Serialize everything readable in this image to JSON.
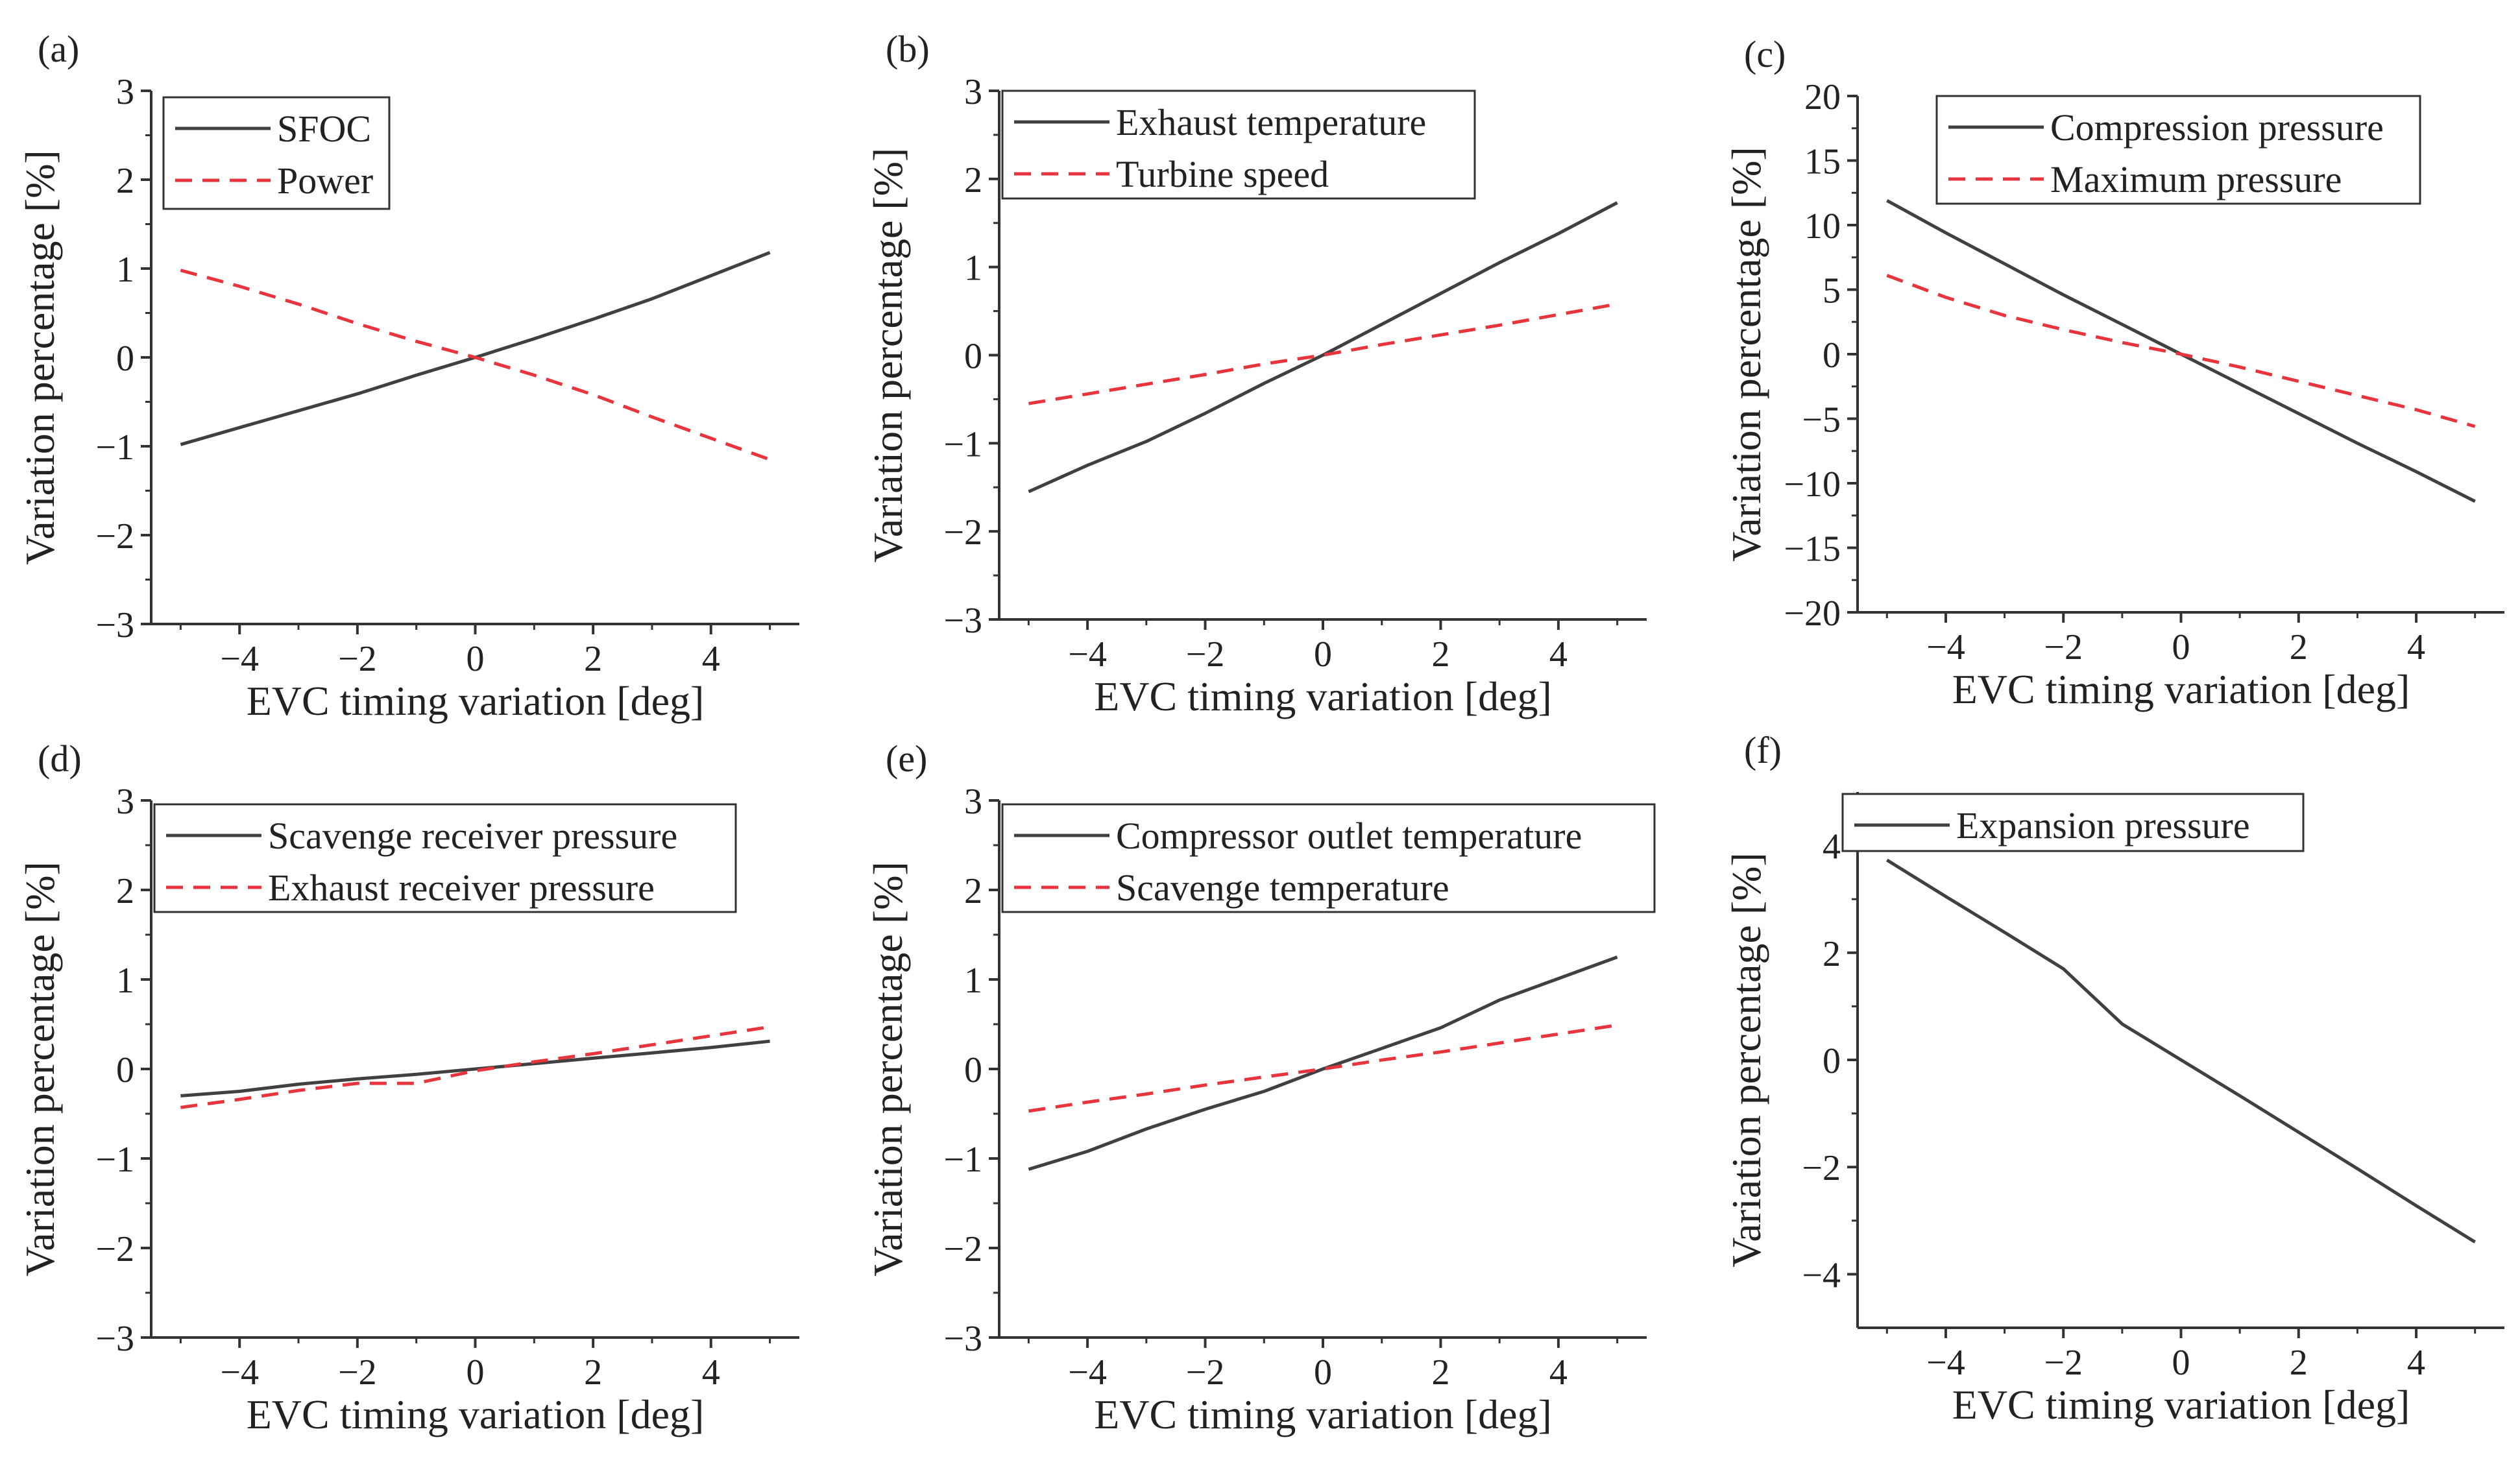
{
  "figure": {
    "colors": {
      "solid": "#404040",
      "dashed": "#e8343c",
      "axis": "#333333",
      "text": "#222222"
    }
  },
  "chart_data": [
    {
      "panel_label": "(a)",
      "type": "line",
      "xlabel": "EVC timing variation [deg]",
      "ylabel": "Variation percentage [%]",
      "xlim": [
        -5.5,
        5.5
      ],
      "ylim": [
        -3,
        3
      ],
      "xticks": [
        -4,
        -2,
        0,
        2,
        4
      ],
      "xtick_labels": [
        "−4",
        "−2",
        "0",
        "2",
        "4"
      ],
      "yticks": [
        -3,
        -2,
        -1,
        0,
        1,
        2,
        3
      ],
      "ytick_labels": [
        "−3",
        "−2",
        "−1",
        "0",
        "1",
        "2",
        "3"
      ],
      "legend_position": "top-left",
      "x": [
        -5,
        -4,
        -3,
        -2,
        -1,
        0,
        1,
        2,
        3,
        4,
        5
      ],
      "series": [
        {
          "name": "SFOC",
          "style": "solid",
          "values": [
            -0.98,
            -0.79,
            -0.6,
            -0.41,
            -0.2,
            0.0,
            0.21,
            0.43,
            0.66,
            0.92,
            1.18
          ]
        },
        {
          "name": "Power",
          "style": "dashed",
          "values": [
            0.98,
            0.8,
            0.6,
            0.38,
            0.18,
            0.0,
            -0.2,
            -0.42,
            -0.67,
            -0.91,
            -1.15
          ]
        }
      ]
    },
    {
      "panel_label": "(b)",
      "type": "line",
      "xlabel": "EVC timing variation [deg]",
      "ylabel": "Variation percentage [%]",
      "xlim": [
        -5.5,
        5.5
      ],
      "ylim": [
        -3,
        3
      ],
      "xticks": [
        -4,
        -2,
        0,
        2,
        4
      ],
      "xtick_labels": [
        "−4",
        "−2",
        "0",
        "2",
        "4"
      ],
      "yticks": [
        -3,
        -2,
        -1,
        0,
        1,
        2,
        3
      ],
      "ytick_labels": [
        "−3",
        "−2",
        "−1",
        "0",
        "1",
        "2",
        "3"
      ],
      "legend_position": "top-left",
      "x": [
        -5,
        -4,
        -3,
        -2,
        -1,
        0,
        1,
        2,
        3,
        4,
        5
      ],
      "series": [
        {
          "name": "Exhaust temperature",
          "style": "solid",
          "values": [
            -1.55,
            -1.25,
            -0.98,
            -0.66,
            -0.32,
            0.0,
            0.35,
            0.7,
            1.05,
            1.38,
            1.73
          ]
        },
        {
          "name": "Turbine speed",
          "style": "dashed",
          "values": [
            -0.55,
            -0.44,
            -0.33,
            -0.22,
            -0.1,
            0.0,
            0.12,
            0.23,
            0.34,
            0.46,
            0.58
          ]
        }
      ]
    },
    {
      "panel_label": "(c)",
      "type": "line",
      "xlabel": "EVC timing variation [deg]",
      "ylabel": "Variation percentage [%]",
      "xlim": [
        -5.5,
        5.5
      ],
      "ylim": [
        -20,
        20
      ],
      "xticks": [
        -4,
        -2,
        0,
        2,
        4
      ],
      "xtick_labels": [
        "−4",
        "−2",
        "0",
        "2",
        "4"
      ],
      "yticks": [
        -20,
        -15,
        -10,
        -5,
        0,
        5,
        10,
        15,
        20
      ],
      "ytick_labels": [
        "−20",
        "−15",
        "−10",
        "−5",
        "0",
        "5",
        "10",
        "15",
        "20"
      ],
      "legend_position": "top-right",
      "x": [
        -5,
        -4,
        -3,
        -2,
        -1,
        0,
        1,
        2,
        3,
        4,
        5
      ],
      "series": [
        {
          "name": "Compression pressure",
          "style": "solid",
          "values": [
            11.9,
            9.4,
            7.0,
            4.6,
            2.3,
            0.0,
            -2.3,
            -4.6,
            -6.9,
            -9.1,
            -11.4
          ]
        },
        {
          "name": "Maximum pressure",
          "style": "dashed",
          "values": [
            6.1,
            4.4,
            3.0,
            1.9,
            0.9,
            0.0,
            -1.0,
            -2.1,
            -3.2,
            -4.3,
            -5.6
          ]
        }
      ]
    },
    {
      "panel_label": "(d)",
      "type": "line",
      "xlabel": "EVC timing variation [deg]",
      "ylabel": "Variation percentage [%]",
      "xlim": [
        -5.5,
        5.5
      ],
      "ylim": [
        -3,
        3
      ],
      "xticks": [
        -4,
        -2,
        0,
        2,
        4
      ],
      "xtick_labels": [
        "−4",
        "−2",
        "0",
        "2",
        "4"
      ],
      "yticks": [
        -3,
        -2,
        -1,
        0,
        1,
        2,
        3
      ],
      "ytick_labels": [
        "−3",
        "−2",
        "−1",
        "0",
        "1",
        "2",
        "3"
      ],
      "legend_position": "top-left",
      "x": [
        -5,
        -4,
        -3,
        -2,
        -1,
        0,
        1,
        2,
        3,
        4,
        5
      ],
      "series": [
        {
          "name": "Scavenge receiver pressure",
          "style": "solid",
          "values": [
            -0.3,
            -0.25,
            -0.17,
            -0.11,
            -0.06,
            0.0,
            0.06,
            0.12,
            0.18,
            0.24,
            0.31
          ]
        },
        {
          "name": "Exhaust receiver pressure",
          "style": "dashed",
          "values": [
            -0.43,
            -0.34,
            -0.24,
            -0.16,
            -0.16,
            -0.02,
            0.08,
            0.17,
            0.27,
            0.37,
            0.47
          ]
        }
      ]
    },
    {
      "panel_label": "(e)",
      "type": "line",
      "xlabel": "EVC timing variation [deg]",
      "ylabel": "Variation percentage [%]",
      "xlim": [
        -5.5,
        5.5
      ],
      "ylim": [
        -3,
        3
      ],
      "xticks": [
        -4,
        -2,
        0,
        2,
        4
      ],
      "xtick_labels": [
        "−4",
        "−2",
        "0",
        "2",
        "4"
      ],
      "yticks": [
        -3,
        -2,
        -1,
        0,
        1,
        2,
        3
      ],
      "ytick_labels": [
        "−3",
        "−2",
        "−1",
        "0",
        "1",
        "2",
        "3"
      ],
      "legend_position": "top-left",
      "x": [
        -5,
        -4,
        -3,
        -2,
        -1,
        0,
        1,
        2,
        3,
        4,
        5
      ],
      "series": [
        {
          "name": "Compressor outlet temperature",
          "style": "solid",
          "values": [
            -1.12,
            -0.92,
            -0.67,
            -0.45,
            -0.25,
            0.0,
            0.23,
            0.46,
            0.77,
            1.01,
            1.25
          ]
        },
        {
          "name": "Scavenge temperature",
          "style": "dashed",
          "values": [
            -0.47,
            -0.37,
            -0.28,
            -0.18,
            -0.09,
            0.0,
            0.1,
            0.19,
            0.29,
            0.39,
            0.49
          ]
        }
      ]
    },
    {
      "panel_label": "(f)",
      "type": "line",
      "xlabel": "EVC timing variation [deg]",
      "ylabel": "Variation percentage [%]",
      "xlim": [
        -5.5,
        5.5
      ],
      "ylim": [
        -5,
        5
      ],
      "xticks": [
        -4,
        -2,
        0,
        2,
        4
      ],
      "xtick_labels": [
        "−4",
        "−2",
        "0",
        "2",
        "4"
      ],
      "yticks": [
        -4,
        -2,
        0,
        2,
        4
      ],
      "ytick_labels": [
        "−4",
        "−2",
        "0",
        "2",
        "4"
      ],
      "legend_position": "top-left",
      "x": [
        -5,
        -4,
        -3,
        -2,
        -1,
        0,
        1,
        2,
        3,
        4,
        5
      ],
      "series": [
        {
          "name": "Expansion pressure",
          "style": "solid",
          "values": [
            3.73,
            3.05,
            2.38,
            1.7,
            0.67,
            0.0,
            -0.67,
            -1.35,
            -2.03,
            -2.72,
            -3.4
          ]
        }
      ]
    }
  ]
}
